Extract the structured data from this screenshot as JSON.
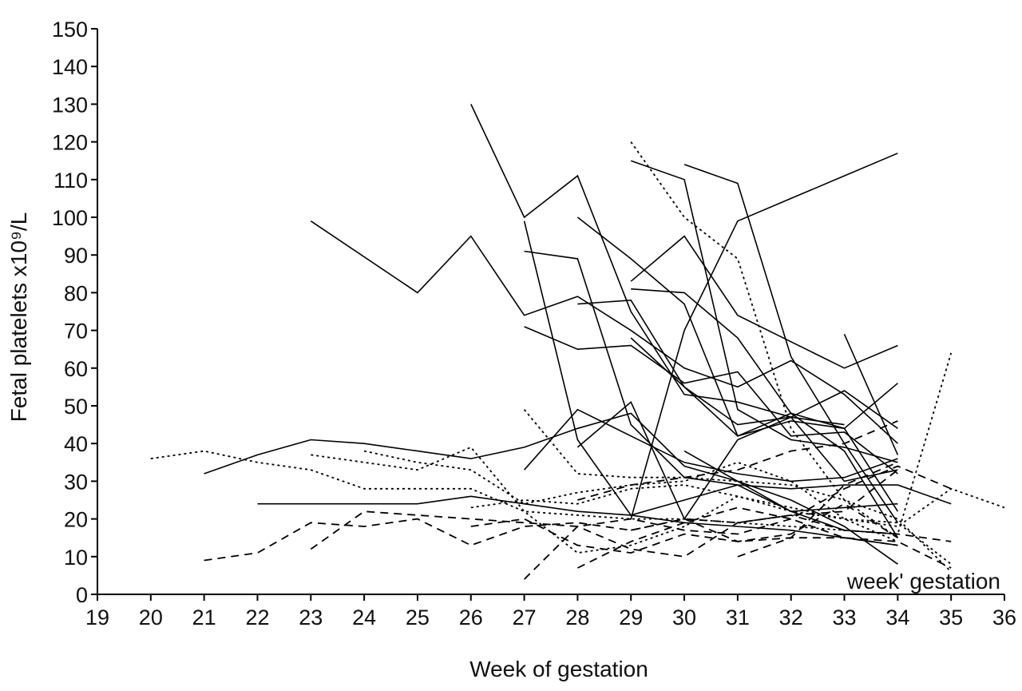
{
  "chart_data": {
    "type": "line",
    "title": "",
    "xlabel": "Week of gestation",
    "ylabel": "Fetal platelets x10⁹/L",
    "annotation": "week' gestation",
    "xlim": [
      19,
      36
    ],
    "ylim": [
      0,
      150
    ],
    "x_ticks": [
      19,
      20,
      21,
      22,
      23,
      24,
      25,
      26,
      27,
      28,
      29,
      30,
      31,
      32,
      33,
      34,
      35,
      36
    ],
    "y_ticks": [
      0,
      10,
      20,
      30,
      40,
      50,
      60,
      70,
      80,
      90,
      100,
      110,
      120,
      130,
      140,
      150
    ],
    "grid": false,
    "legend": "none",
    "series": [
      {
        "style": "solid",
        "points": [
          [
            23,
            99
          ],
          [
            25,
            80
          ],
          [
            26,
            95
          ],
          [
            27,
            74
          ],
          [
            28,
            79
          ],
          [
            29,
            70
          ],
          [
            30,
            60
          ],
          [
            31,
            55
          ],
          [
            32,
            62
          ],
          [
            33,
            53
          ],
          [
            34,
            40
          ]
        ]
      },
      {
        "style": "solid",
        "points": [
          [
            26,
            130
          ],
          [
            27,
            100
          ],
          [
            28,
            111
          ],
          [
            29,
            75
          ],
          [
            30,
            53
          ],
          [
            31,
            51
          ],
          [
            32,
            47
          ],
          [
            33,
            45
          ]
        ]
      },
      {
        "style": "solid",
        "points": [
          [
            27,
            99
          ],
          [
            28,
            41
          ],
          [
            29,
            21
          ],
          [
            30,
            25
          ],
          [
            31,
            29
          ],
          [
            32,
            22
          ],
          [
            33,
            23
          ],
          [
            34,
            24
          ]
        ]
      },
      {
        "style": "solid",
        "points": [
          [
            27,
            91
          ],
          [
            28,
            89
          ],
          [
            29,
            45
          ],
          [
            30,
            31
          ],
          [
            31,
            29
          ],
          [
            32,
            28
          ],
          [
            33,
            29
          ],
          [
            34,
            29
          ],
          [
            35,
            24
          ]
        ]
      },
      {
        "style": "solid",
        "points": [
          [
            28,
            100
          ],
          [
            29,
            89
          ],
          [
            30,
            77
          ],
          [
            31,
            42
          ],
          [
            32,
            46
          ],
          [
            33,
            44
          ],
          [
            34,
            22
          ]
        ]
      },
      {
        "style": "solid",
        "points": [
          [
            29,
            115
          ],
          [
            30,
            110
          ],
          [
            31,
            49
          ],
          [
            32,
            41
          ],
          [
            33,
            39
          ],
          [
            34,
            35
          ]
        ]
      },
      {
        "style": "solid",
        "points": [
          [
            30,
            114
          ],
          [
            31,
            109
          ],
          [
            32,
            63
          ],
          [
            33,
            40
          ],
          [
            34,
            19
          ]
        ]
      },
      {
        "style": "solid",
        "points": [
          [
            29,
            83
          ],
          [
            30,
            95
          ],
          [
            31,
            74
          ],
          [
            32,
            67
          ],
          [
            33,
            60
          ],
          [
            34,
            66
          ]
        ]
      },
      {
        "style": "solid",
        "points": [
          [
            29,
            20
          ],
          [
            30,
            70
          ],
          [
            31,
            99
          ],
          [
            32,
            105
          ],
          [
            33,
            111
          ],
          [
            34,
            117
          ]
        ]
      },
      {
        "style": "solid",
        "points": [
          [
            27,
            71
          ],
          [
            28,
            65
          ],
          [
            29,
            66
          ],
          [
            30,
            56
          ],
          [
            31,
            59
          ],
          [
            32,
            42
          ],
          [
            33,
            43
          ],
          [
            34,
            32
          ]
        ]
      },
      {
        "style": "solid",
        "points": [
          [
            29,
            81
          ],
          [
            30,
            80
          ],
          [
            31,
            68
          ],
          [
            32,
            48
          ],
          [
            33,
            38
          ],
          [
            34,
            15
          ]
        ]
      },
      {
        "style": "solid",
        "points": [
          [
            28,
            77
          ],
          [
            29,
            78
          ],
          [
            30,
            55
          ],
          [
            31,
            45
          ],
          [
            32,
            47
          ],
          [
            33,
            54
          ],
          [
            34,
            44
          ]
        ]
      },
      {
        "style": "solid",
        "points": [
          [
            29,
            68
          ],
          [
            30,
            55
          ],
          [
            31,
            42
          ],
          [
            32,
            48
          ],
          [
            33,
            44
          ],
          [
            34,
            56
          ]
        ]
      },
      {
        "style": "solid",
        "points": [
          [
            27,
            33
          ],
          [
            28,
            49
          ],
          [
            29,
            42
          ],
          [
            30,
            35
          ],
          [
            31,
            32
          ],
          [
            32,
            30
          ],
          [
            33,
            31
          ],
          [
            34,
            36
          ]
        ]
      },
      {
        "style": "solid",
        "points": [
          [
            28,
            39
          ],
          [
            29,
            51
          ],
          [
            30,
            20
          ],
          [
            31,
            41
          ],
          [
            32,
            47
          ],
          [
            33,
            30
          ],
          [
            34,
            33
          ]
        ]
      },
      {
        "style": "solid",
        "points": [
          [
            21,
            32
          ],
          [
            22,
            37
          ],
          [
            23,
            41
          ],
          [
            24,
            40
          ],
          [
            25,
            38
          ],
          [
            26,
            36
          ],
          [
            27,
            39
          ],
          [
            28,
            44
          ],
          [
            29,
            48
          ],
          [
            30,
            34
          ],
          [
            31,
            30
          ],
          [
            32,
            25
          ],
          [
            33,
            18
          ],
          [
            34,
            8
          ]
        ]
      },
      {
        "style": "solid",
        "points": [
          [
            33,
            69
          ],
          [
            34,
            37
          ]
        ]
      },
      {
        "style": "solid",
        "points": [
          [
            22,
            24
          ],
          [
            25,
            24
          ],
          [
            26,
            26
          ],
          [
            27,
            24
          ],
          [
            28,
            22
          ],
          [
            29,
            21
          ],
          [
            30,
            19
          ],
          [
            31,
            18
          ],
          [
            32,
            17
          ],
          [
            33,
            15
          ],
          [
            34,
            13
          ]
        ]
      },
      {
        "style": "solid",
        "points": [
          [
            30,
            38
          ],
          [
            31,
            30
          ],
          [
            32,
            22
          ],
          [
            33,
            17
          ],
          [
            34,
            16
          ]
        ]
      },
      {
        "style": "dotted",
        "points": [
          [
            20,
            36
          ],
          [
            21,
            38
          ],
          [
            22,
            35
          ],
          [
            23,
            33
          ],
          [
            24,
            28
          ],
          [
            26,
            28
          ],
          [
            27,
            22
          ],
          [
            28,
            21
          ],
          [
            29,
            20
          ],
          [
            30,
            20
          ],
          [
            31,
            19
          ],
          [
            32,
            18
          ],
          [
            33,
            17
          ],
          [
            34,
            16
          ],
          [
            35,
            64
          ]
        ]
      },
      {
        "style": "dotted",
        "points": [
          [
            23,
            37
          ],
          [
            25,
            33
          ],
          [
            26,
            39
          ],
          [
            27,
            22
          ],
          [
            28,
            11
          ],
          [
            29,
            13
          ],
          [
            30,
            18
          ],
          [
            31,
            26
          ],
          [
            32,
            22
          ],
          [
            33,
            20
          ],
          [
            34,
            18
          ],
          [
            35,
            28
          ],
          [
            36,
            23
          ]
        ]
      },
      {
        "style": "dotted",
        "points": [
          [
            29,
            120
          ],
          [
            30,
            100
          ],
          [
            31,
            89
          ],
          [
            32,
            44
          ],
          [
            33,
            25
          ],
          [
            34,
            20
          ],
          [
            35,
            6
          ]
        ]
      },
      {
        "style": "dotted",
        "points": [
          [
            27,
            49
          ],
          [
            28,
            32
          ],
          [
            29,
            31
          ],
          [
            30,
            31
          ],
          [
            31,
            30
          ],
          [
            32,
            29
          ],
          [
            33,
            25
          ],
          [
            34,
            15
          ]
        ]
      },
      {
        "style": "dotted",
        "points": [
          [
            24,
            38
          ],
          [
            25,
            35
          ],
          [
            26,
            33
          ],
          [
            27,
            24
          ],
          [
            28,
            27
          ],
          [
            29,
            29
          ],
          [
            30,
            30
          ],
          [
            31,
            35
          ],
          [
            32,
            30
          ],
          [
            33,
            20
          ],
          [
            34,
            14
          ]
        ]
      },
      {
        "style": "dotted",
        "points": [
          [
            26,
            23
          ],
          [
            27,
            25
          ],
          [
            28,
            24
          ],
          [
            29,
            28
          ],
          [
            30,
            29
          ],
          [
            31,
            26
          ],
          [
            32,
            23
          ],
          [
            33,
            20
          ],
          [
            34,
            19
          ],
          [
            35,
            8
          ]
        ]
      },
      {
        "style": "dashed",
        "points": [
          [
            21,
            9
          ],
          [
            22,
            11
          ],
          [
            23,
            19
          ],
          [
            24,
            18
          ],
          [
            25,
            20
          ],
          [
            26,
            13
          ],
          [
            27,
            18
          ],
          [
            28,
            19
          ],
          [
            29,
            17
          ],
          [
            30,
            20
          ],
          [
            31,
            19
          ],
          [
            32,
            21
          ],
          [
            33,
            22
          ],
          [
            34,
            33
          ]
        ]
      },
      {
        "style": "dashed",
        "points": [
          [
            23,
            12
          ],
          [
            24,
            22
          ],
          [
            25,
            21
          ],
          [
            26,
            20
          ],
          [
            27,
            19
          ],
          [
            28,
            18
          ],
          [
            29,
            20
          ],
          [
            30,
            17
          ],
          [
            31,
            16
          ],
          [
            32,
            20
          ],
          [
            33,
            28
          ],
          [
            34,
            34
          ],
          [
            35,
            28
          ]
        ]
      },
      {
        "style": "dashed",
        "points": [
          [
            27,
            4
          ],
          [
            28,
            18
          ],
          [
            29,
            12
          ],
          [
            30,
            10
          ],
          [
            31,
            19
          ],
          [
            32,
            21
          ],
          [
            33,
            17
          ],
          [
            34,
            16
          ],
          [
            35,
            14
          ]
        ]
      },
      {
        "style": "dashed",
        "points": [
          [
            28,
            7
          ],
          [
            29,
            14
          ],
          [
            30,
            19
          ],
          [
            31,
            23
          ],
          [
            32,
            20
          ],
          [
            33,
            15
          ],
          [
            34,
            14
          ],
          [
            35,
            7
          ]
        ]
      },
      {
        "style": "dashed",
        "points": [
          [
            26,
            18
          ],
          [
            27,
            20
          ],
          [
            28,
            13
          ],
          [
            29,
            11
          ],
          [
            30,
            16
          ],
          [
            31,
            14
          ],
          [
            32,
            15
          ],
          [
            33,
            15
          ],
          [
            34,
            13
          ]
        ]
      },
      {
        "style": "dashed",
        "points": [
          [
            31,
            10
          ],
          [
            32,
            15
          ],
          [
            33,
            29
          ],
          [
            34,
            35
          ]
        ]
      },
      {
        "style": "dashed",
        "points": [
          [
            28,
            25
          ],
          [
            29,
            29
          ],
          [
            30,
            31
          ],
          [
            31,
            33
          ],
          [
            32,
            38
          ],
          [
            33,
            40
          ],
          [
            34,
            46
          ]
        ]
      },
      {
        "style": "dashed",
        "points": [
          [
            29,
            17
          ],
          [
            30,
            20
          ],
          [
            31,
            14
          ],
          [
            32,
            16
          ],
          [
            33,
            24
          ],
          [
            34,
            15
          ]
        ]
      }
    ]
  }
}
